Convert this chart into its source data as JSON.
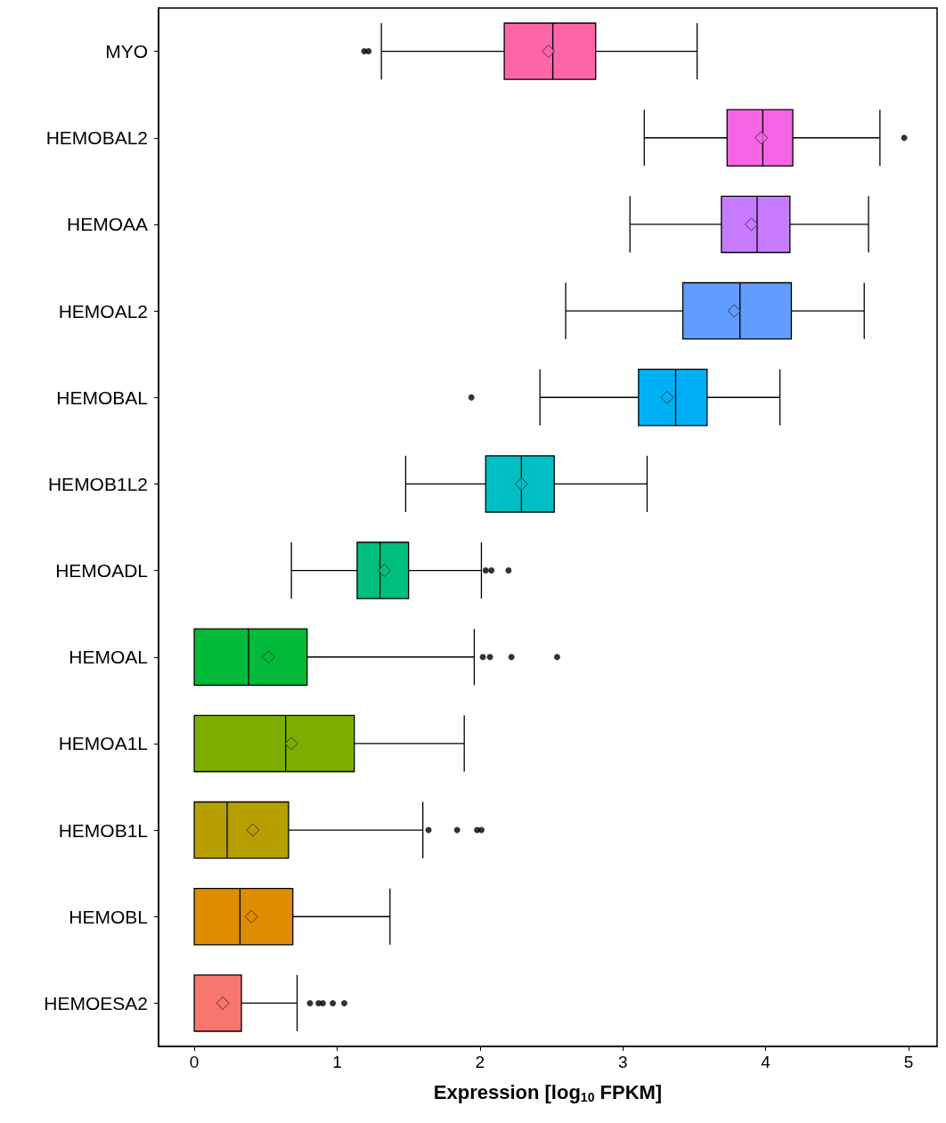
{
  "chart_data": {
    "type": "box",
    "orientation": "horizontal",
    "xlabel": "Expression [log$_{10}$ FPKM]",
    "categories": [
      "MYO",
      "HEMOBAL2",
      "HEMOAA",
      "HEMOAL2",
      "HEMOBAL",
      "HEMOB1L2",
      "HEMOADL",
      "HEMOAL",
      "HEMOA1L",
      "HEMOB1L",
      "HEMOBL",
      "HEMOESA2"
    ],
    "colors": [
      "#ff66a8",
      "#f564e3",
      "#c77cff",
      "#619cff",
      "#00b0f6",
      "#00bfc4",
      "#00bf7d",
      "#00ba38",
      "#7cae00",
      "#b79f00",
      "#de8c00",
      "#f8766d"
    ],
    "boxes": [
      {
        "low": 1.31,
        "q1": 2.17,
        "median": 2.51,
        "q3": 2.81,
        "high": 3.52,
        "mean": 2.48,
        "outliers": [
          1.19,
          1.22
        ]
      },
      {
        "low": 3.15,
        "q1": 3.73,
        "median": 3.98,
        "q3": 4.19,
        "high": 4.8,
        "mean": 3.97,
        "outliers": [
          4.97
        ]
      },
      {
        "low": 3.05,
        "q1": 3.69,
        "median": 3.94,
        "q3": 4.17,
        "high": 4.72,
        "mean": 3.9
      },
      {
        "low": 2.6,
        "q1": 3.42,
        "median": 3.82,
        "q3": 4.18,
        "high": 4.69,
        "mean": 3.78
      },
      {
        "low": 2.42,
        "q1": 3.11,
        "median": 3.37,
        "q3": 3.59,
        "high": 4.1,
        "mean": 3.31,
        "outliers": [
          1.94
        ]
      },
      {
        "low": 1.48,
        "q1": 2.04,
        "median": 2.29,
        "q3": 2.52,
        "high": 3.17,
        "mean": 2.29
      },
      {
        "low": 0.68,
        "q1": 1.14,
        "median": 1.3,
        "q3": 1.5,
        "high": 2.01,
        "mean": 1.33,
        "outliers": [
          2.04,
          2.08,
          2.2
        ]
      },
      {
        "low": 0,
        "q1": 0,
        "median": 0.38,
        "q3": 0.79,
        "high": 1.96,
        "mean": 0.52,
        "outliers": [
          2.02,
          2.07,
          2.22,
          2.54
        ]
      },
      {
        "low": 0,
        "q1": 0,
        "median": 0.64,
        "q3": 1.12,
        "high": 1.89,
        "mean": 0.68
      },
      {
        "low": 0,
        "q1": 0,
        "median": 0.23,
        "q3": 0.66,
        "high": 1.6,
        "mean": 0.41,
        "outliers": [
          1.64,
          1.84,
          1.98,
          2.01
        ]
      },
      {
        "low": 0,
        "q1": 0,
        "median": 0.32,
        "q3": 0.69,
        "high": 1.37,
        "mean": 0.4
      },
      {
        "low": 0,
        "q1": 0,
        "median": 0,
        "q3": 0.33,
        "high": 0.72,
        "mean": 0.2,
        "outliers": [
          0.81,
          0.87,
          0.9,
          0.97,
          1.05
        ]
      }
    ],
    "xlim": [
      -0.25,
      5.2
    ],
    "xticks": [
      0,
      1,
      2,
      3,
      4,
      5
    ]
  }
}
